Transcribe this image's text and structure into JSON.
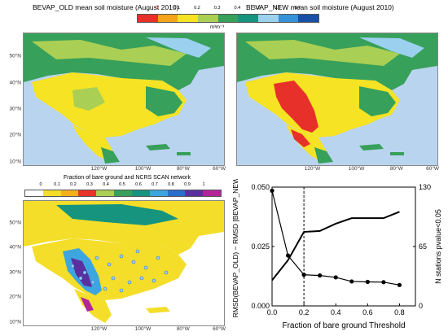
{
  "panels": {
    "old": {
      "title": "BEVAP_OLD mean soil moisture (August 2010)"
    },
    "new": {
      "title": "BEVAP_NEW mean soil moisture (August 2010)"
    },
    "bare": {
      "title": "Fraction of bare ground and NCRS SCAN network"
    }
  },
  "sm_colorbar": {
    "unit": "m³m⁻³",
    "ticks": [
      "0",
      "0.1",
      "0.2",
      "0.3",
      "0.4",
      "0.5",
      "0.6",
      "0.7"
    ],
    "colors": [
      "#e8302a",
      "#f5a31b",
      "#f6e324",
      "#a9cf54",
      "#37a05a",
      "#17947d",
      "#9bd0ee",
      "#3592d8",
      "#1a4fa8"
    ]
  },
  "bg_colorbar": {
    "ticks": [
      "0",
      "0.1",
      "0.2",
      "0.3",
      "0.4",
      "0.5",
      "0.6",
      "0.7",
      "0.8",
      "0.9",
      "1"
    ],
    "colors": [
      "#ffffff",
      "#f4de2a",
      "#f5b01c",
      "#e8352a",
      "#a9cf54",
      "#37a05a",
      "#17947d",
      "#3da6de",
      "#2b6fcc",
      "#5a2fa0",
      "#b3249a"
    ]
  },
  "map_axes": {
    "lat_labels": [
      "50°N",
      "40°N",
      "30°N",
      "20°N",
      "10°N"
    ],
    "lon_labels": [
      "120°W",
      "100°W",
      "80°W",
      "60°W"
    ]
  },
  "chart_data": {
    "type": "line",
    "xlabel": "Fraction of bare ground Threshold",
    "ylabel": "RMSD(BEVAP_OLD) − RMSD [BEVAP_NEW]",
    "y2label": "N stations pvalue<0.05",
    "xlim": [
      0,
      0.9
    ],
    "ylim": [
      0,
      0.05
    ],
    "y2lim": [
      0,
      130
    ],
    "x_ticks": [
      "0.0",
      "0.2",
      "0.4",
      "0.6",
      "0.8"
    ],
    "y_ticks": [
      "0.000",
      "0.025",
      "0.050"
    ],
    "y2_ticks": [
      "0",
      "65",
      "130"
    ],
    "vline_x": 0.2,
    "series": [
      {
        "axis": "left",
        "marker": "circle",
        "x": [
          0.0,
          0.1,
          0.2,
          0.3,
          0.4,
          0.5,
          0.6,
          0.7,
          0.8
        ],
        "values": [
          0.0485,
          0.0212,
          0.0131,
          0.0128,
          0.012,
          0.0103,
          0.0101,
          0.01,
          0.0088
        ]
      },
      {
        "axis": "right",
        "marker": "none",
        "x": [
          0.0,
          0.1,
          0.2,
          0.3,
          0.4,
          0.5,
          0.6,
          0.7,
          0.8
        ],
        "values": [
          28,
          50,
          81,
          82,
          90,
          96,
          96,
          96,
          103
        ]
      }
    ],
    "grid": false
  }
}
